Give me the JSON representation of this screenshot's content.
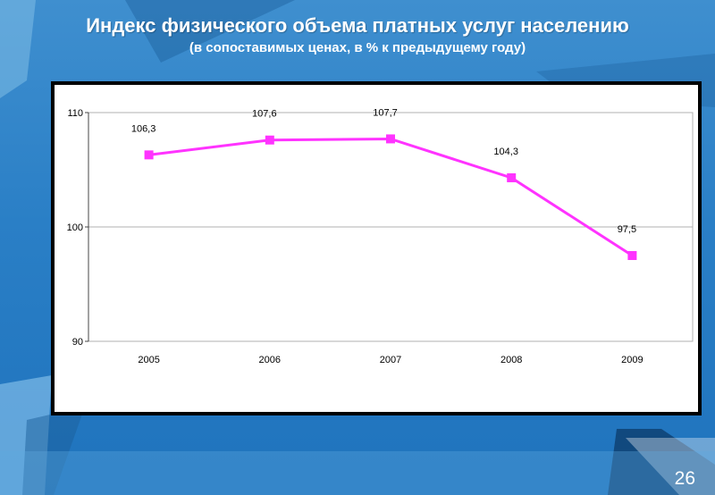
{
  "slide": {
    "title": "Индекс физического объема платных услуг населению",
    "subtitle": "(в сопоставимых ценах, в % к предыдущему году)",
    "page_number": "26"
  },
  "colors": {
    "background": "#2a7fc6",
    "series_line": "#ff33ff",
    "frame_border": "#000000",
    "grid": "#b0b0b0"
  },
  "chart_data": {
    "type": "line",
    "title": "",
    "xlabel": "",
    "ylabel": "",
    "categories": [
      "2005",
      "2006",
      "2007",
      "2008",
      "2009"
    ],
    "series": [
      {
        "values": [
          106.3,
          107.6,
          107.7,
          104.3,
          97.5
        ],
        "labels": [
          "106,3",
          "107,6",
          "107,7",
          "104,3",
          "97,5"
        ]
      }
    ],
    "ylim": [
      90,
      110
    ],
    "yticks": [
      90,
      100,
      110
    ],
    "grid": true,
    "legend": "none",
    "marker": "square"
  }
}
